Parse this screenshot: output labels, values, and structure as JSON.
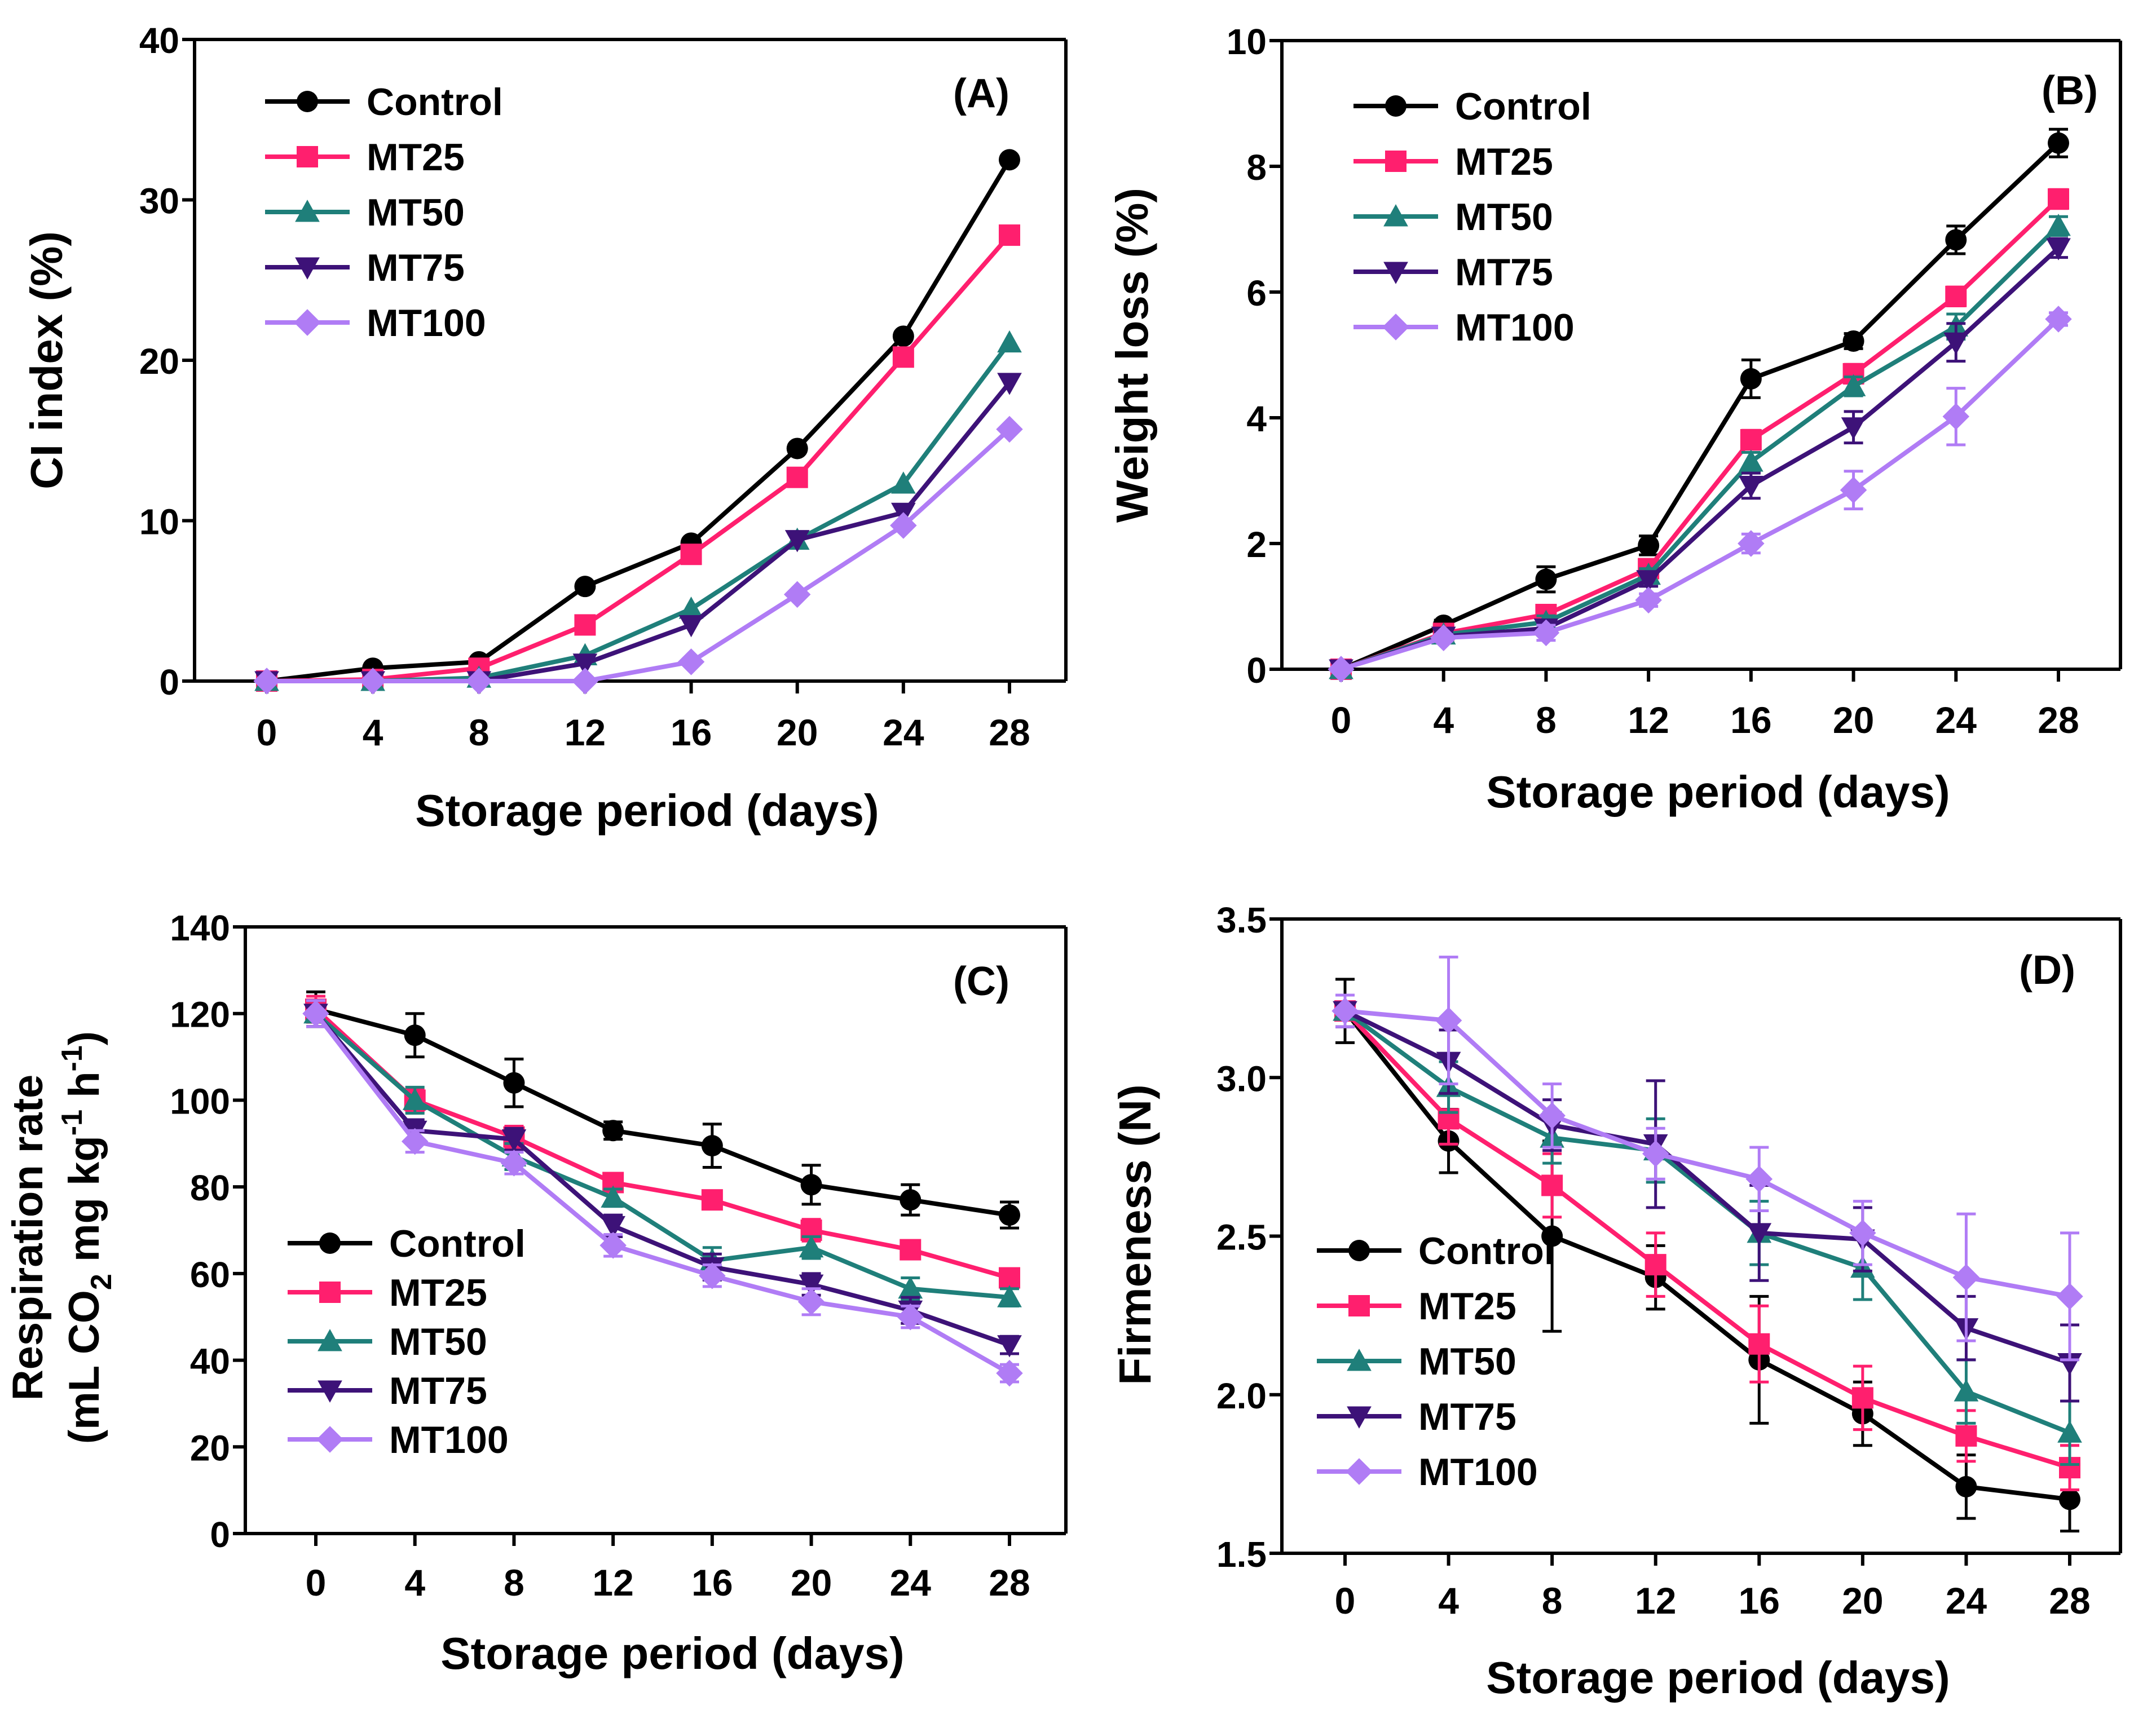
{
  "chart_data": [
    {
      "panel": "(A)",
      "type": "line",
      "xlabel": "Storage period (days)",
      "ylabel": "CI index (%)",
      "x": [
        0,
        4,
        8,
        12,
        16,
        20,
        24,
        28
      ],
      "ylim": [
        0,
        40
      ],
      "yticks": [
        0,
        10,
        20,
        30,
        40
      ],
      "legend_position": "top-left",
      "series": [
        {
          "name": "Control",
          "color": "#000000",
          "marker": "circle",
          "values": [
            0,
            0.8,
            1.2,
            5.9,
            8.6,
            14.5,
            21.5,
            32.5
          ]
        },
        {
          "name": "MT25",
          "color": "#ff1f6e",
          "marker": "square",
          "values": [
            0,
            0.1,
            0.8,
            3.5,
            7.9,
            12.7,
            20.2,
            27.8
          ]
        },
        {
          "name": "MT50",
          "color": "#1f7f7a",
          "marker": "triangle-up",
          "values": [
            0,
            0,
            0.2,
            1.6,
            4.5,
            8.8,
            12.3,
            21.1
          ]
        },
        {
          "name": "MT75",
          "color": "#3d1278",
          "marker": "triangle-down",
          "values": [
            0,
            0,
            0,
            1.1,
            3.5,
            8.8,
            10.5,
            18.6
          ]
        },
        {
          "name": "MT100",
          "color": "#b07cf5",
          "marker": "diamond",
          "values": [
            0,
            0,
            0,
            0,
            1.2,
            5.4,
            9.7,
            15.7
          ]
        }
      ]
    },
    {
      "panel": "(B)",
      "type": "line",
      "xlabel": "Storage period (days)",
      "ylabel": "Weight loss (%)",
      "x": [
        0,
        4,
        8,
        12,
        16,
        20,
        24,
        28
      ],
      "ylim": [
        0,
        10
      ],
      "yticks": [
        0,
        2,
        4,
        6,
        8,
        10
      ],
      "legend_position": "top-left",
      "series": [
        {
          "name": "Control",
          "color": "#000000",
          "marker": "circle",
          "values": [
            0,
            0.7,
            1.43,
            1.97,
            4.62,
            5.22,
            6.83,
            8.37
          ],
          "errors": [
            0,
            0.08,
            0.2,
            0.15,
            0.3,
            0.12,
            0.22,
            0.22
          ]
        },
        {
          "name": "MT25",
          "color": "#ff1f6e",
          "marker": "square",
          "values": [
            0,
            0.57,
            0.87,
            1.6,
            3.65,
            4.7,
            5.93,
            7.48
          ],
          "errors": [
            0,
            0.05,
            0.1,
            0.1,
            0.15,
            0.15,
            0.15,
            0.15
          ]
        },
        {
          "name": "MT50",
          "color": "#1f7f7a",
          "marker": "triangle-up",
          "values": [
            0,
            0.55,
            0.75,
            1.5,
            3.3,
            4.5,
            5.45,
            7.05
          ],
          "errors": [
            0,
            0.05,
            0.1,
            0.1,
            0.15,
            0.15,
            0.2,
            0.15
          ]
        },
        {
          "name": "MT75",
          "color": "#3d1278",
          "marker": "triangle-down",
          "values": [
            0,
            0.52,
            0.65,
            1.42,
            2.92,
            3.85,
            5.2,
            6.7
          ],
          "errors": [
            0,
            0.05,
            0.1,
            0.1,
            0.2,
            0.25,
            0.3,
            0.15
          ]
        },
        {
          "name": "MT100",
          "color": "#b07cf5",
          "marker": "diamond",
          "values": [
            0,
            0.5,
            0.58,
            1.1,
            2.0,
            2.85,
            4.02,
            5.57
          ],
          "errors": [
            0,
            0.05,
            0.12,
            0.1,
            0.15,
            0.3,
            0.45,
            0.1
          ]
        }
      ]
    },
    {
      "panel": "(C)",
      "type": "line",
      "xlabel": "Storage period (days)",
      "ylabel_line1": "Respiration rate",
      "ylabel_line2_prefix": "(mL CO",
      "ylabel_line2_sub": "2",
      "ylabel_line2_mid": " mg kg",
      "ylabel_line2_sup": "-1",
      "ylabel_line2_mid2": " h",
      "ylabel_line2_sup2": "-1",
      "ylabel_line2_suffix": ")",
      "x": [
        0,
        4,
        8,
        12,
        16,
        20,
        24,
        28
      ],
      "ylim": [
        0,
        140
      ],
      "yticks": [
        0,
        20,
        40,
        60,
        80,
        100,
        120,
        140
      ],
      "legend_position": "bottom-left",
      "series": [
        {
          "name": "Control",
          "color": "#000000",
          "marker": "circle",
          "values": [
            121,
            115,
            104,
            93,
            89.5,
            80.5,
            77,
            73.5
          ],
          "errors": [
            4,
            5,
            5.5,
            2,
            5,
            4.5,
            3.5,
            3
          ]
        },
        {
          "name": "MT25",
          "color": "#ff1f6e",
          "marker": "square",
          "values": [
            121,
            100,
            91.5,
            81,
            77,
            70,
            65.5,
            59
          ],
          "errors": [
            3,
            2.5,
            2.5,
            2,
            2,
            2.5,
            2,
            2
          ]
        },
        {
          "name": "MT50",
          "color": "#1f7f7a",
          "marker": "triangle-up",
          "values": [
            120,
            100,
            87,
            77.5,
            63,
            66,
            56.5,
            54.5
          ],
          "errors": [
            3,
            3,
            3,
            2,
            3,
            2.5,
            2.5,
            2
          ]
        },
        {
          "name": "MT75",
          "color": "#3d1278",
          "marker": "triangle-down",
          "values": [
            120,
            93,
            91,
            71,
            61.5,
            57.5,
            51.5,
            43.5
          ],
          "errors": [
            3,
            2.5,
            2.5,
            2.5,
            3,
            2.5,
            3,
            2
          ]
        },
        {
          "name": "MT100",
          "color": "#b07cf5",
          "marker": "diamond",
          "values": [
            120,
            90.5,
            85.5,
            66.5,
            59.5,
            53.5,
            50,
            37
          ],
          "errors": [
            3,
            2.5,
            2.5,
            2.5,
            2.5,
            3,
            2.5,
            2
          ]
        }
      ]
    },
    {
      "panel": "(D)",
      "type": "line",
      "xlabel": "Storage period (days)",
      "ylabel": "Firmeness (N)",
      "x": [
        0,
        4,
        8,
        12,
        16,
        20,
        24,
        28
      ],
      "ylim": [
        1.5,
        3.5
      ],
      "yticks": [
        1.5,
        2.0,
        2.5,
        3.0,
        3.5
      ],
      "legend_position": "bottom-left",
      "series": [
        {
          "name": "Control",
          "color": "#000000",
          "marker": "circle",
          "values": [
            3.21,
            2.8,
            2.5,
            2.37,
            2.11,
            1.94,
            1.71,
            1.67
          ],
          "errors": [
            0.1,
            0.1,
            0.3,
            0.1,
            0.2,
            0.1,
            0.1,
            0.1
          ]
        },
        {
          "name": "MT25",
          "color": "#ff1f6e",
          "marker": "square",
          "values": [
            3.21,
            2.87,
            2.66,
            2.41,
            2.16,
            1.99,
            1.87,
            1.77
          ],
          "errors": [
            0.05,
            0.08,
            0.1,
            0.1,
            0.12,
            0.1,
            0.08,
            0.07
          ]
        },
        {
          "name": "MT50",
          "color": "#1f7f7a",
          "marker": "triangle-up",
          "values": [
            3.21,
            2.97,
            2.81,
            2.77,
            2.51,
            2.4,
            2.01,
            1.88
          ],
          "errors": [
            0.05,
            0.08,
            0.08,
            0.1,
            0.1,
            0.1,
            0.1,
            0.1
          ]
        },
        {
          "name": "MT75",
          "color": "#3d1278",
          "marker": "triangle-down",
          "values": [
            3.21,
            3.05,
            2.85,
            2.79,
            2.51,
            2.49,
            2.21,
            2.1
          ],
          "errors": [
            0.05,
            0.1,
            0.08,
            0.2,
            0.15,
            0.1,
            0.1,
            0.12
          ]
        },
        {
          "name": "MT100",
          "color": "#b07cf5",
          "marker": "diamond",
          "values": [
            3.21,
            3.18,
            2.88,
            2.76,
            2.68,
            2.51,
            2.37,
            2.31
          ],
          "errors": [
            0.05,
            0.2,
            0.1,
            0.08,
            0.1,
            0.1,
            0.2,
            0.2
          ]
        }
      ]
    }
  ]
}
